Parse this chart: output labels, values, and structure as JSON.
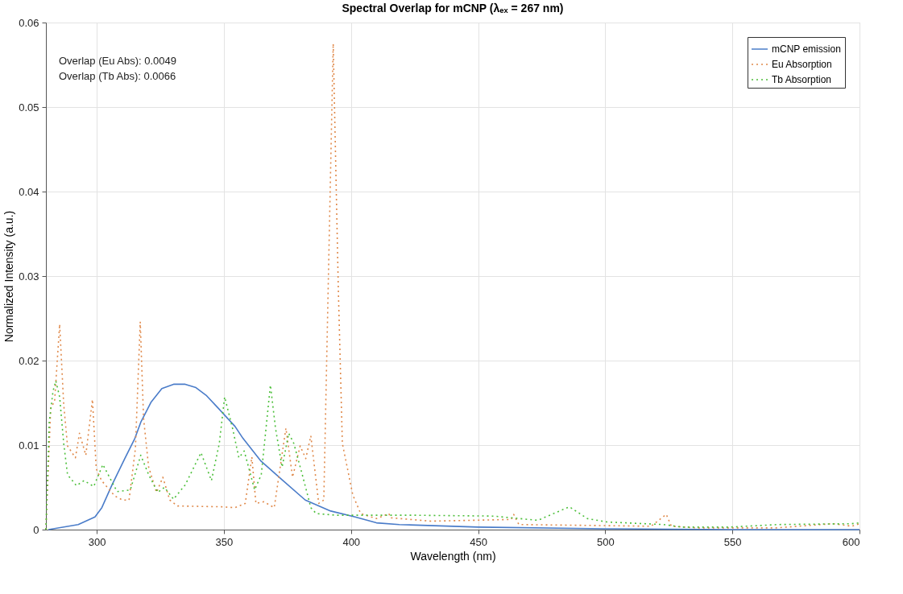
{
  "chart_data": {
    "type": "line",
    "title": "Spectral Overlap for mCNP (λₑₓ = 267 nm)",
    "xlabel": "Wavelength (nm)",
    "ylabel": "Normalized Intensity (a.u.)",
    "annotations": [
      "Overlap (Eu Abs): 0.0049",
      "Overlap (Tb Abs): 0.0066"
    ],
    "xlim": [
      280,
      600
    ],
    "ylim": [
      0,
      0.06
    ],
    "xticks": [
      300,
      350,
      400,
      450,
      500,
      550,
      600
    ],
    "yticks": [
      0,
      0.01,
      0.02,
      0.03,
      0.04,
      0.05,
      0.06
    ],
    "grid": true,
    "legend": "top right",
    "marker": "none",
    "series": [
      {
        "name": "mCNP emission",
        "color": "#4a7cc9",
        "line_style": "solid",
        "x": [
          281,
          292.7,
          299.3,
          302,
          306,
          311,
          315,
          317.3,
          321.4,
          325.6,
          330.2,
          334.8,
          339,
          343,
          348,
          354.4,
          357.5,
          364.6,
          372.9,
          382,
          392,
          401.6,
          410,
          419,
          450,
          500,
          550,
          600
        ],
        "values": [
          0.0,
          0.0006,
          0.0015,
          0.0026,
          0.0053,
          0.0084,
          0.0108,
          0.0127,
          0.0151,
          0.0167,
          0.0172,
          0.0172,
          0.0168,
          0.0159,
          0.0143,
          0.0122,
          0.0108,
          0.0081,
          0.0059,
          0.0035,
          0.0022,
          0.0015,
          0.0008,
          0.0006,
          0.0003,
          0.0001,
          0.0,
          0.0
        ]
      },
      {
        "name": "Eu Absorption",
        "color": "#e0894a",
        "line_style": "dotted",
        "x": [
          280,
          281.9,
          283.4,
          285.4,
          287,
          288.5,
          291.6,
          293.2,
          295.7,
          298.3,
          299.8,
          301.9,
          307,
          310.1,
          312.7,
          315.2,
          317.1,
          318.4,
          320.4,
          323.5,
          326,
          328.7,
          331.8,
          349,
          354.4,
          358.4,
          361,
          362.6,
          365.7,
          369.8,
          374.4,
          377,
          380,
          382.2,
          384.2,
          387.3,
          389.3,
          393,
          395,
          396.6,
          400.7,
          403.8,
          410,
          414.9,
          415.5,
          431.5,
          463,
          464,
          466,
          493,
          518,
          524,
          526,
          536,
          567,
          589.6,
          597,
          600
        ],
        "values": [
          0.0,
          0.0145,
          0.0151,
          0.0243,
          0.0148,
          0.0099,
          0.0085,
          0.0114,
          0.0088,
          0.0154,
          0.0072,
          0.0058,
          0.004,
          0.0035,
          0.0035,
          0.0096,
          0.0246,
          0.0132,
          0.0074,
          0.0044,
          0.0062,
          0.0035,
          0.0028,
          0.0027,
          0.0026,
          0.0031,
          0.0086,
          0.0031,
          0.0033,
          0.0026,
          0.012,
          0.0062,
          0.0099,
          0.0084,
          0.0111,
          0.0031,
          0.0035,
          0.0575,
          0.0286,
          0.0102,
          0.0041,
          0.0019,
          0.0013,
          0.0019,
          0.0014,
          0.001,
          0.0012,
          0.0018,
          0.0006,
          0.0005,
          0.0004,
          0.0018,
          0.0004,
          0.0002,
          0.0002,
          0.0007,
          0.0004,
          0.0007
        ]
      },
      {
        "name": "Tb Absorption",
        "color": "#4cbf3a",
        "line_style": "dotted",
        "x": [
          280,
          281.3,
          282.8,
          283.9,
          285.4,
          287,
          288.5,
          292,
          295,
          298.8,
          302.4,
          305,
          308,
          313.2,
          317.3,
          320.4,
          324,
          326.6,
          330.2,
          334.8,
          341,
          345.1,
          348.2,
          350.3,
          353.4,
          355.9,
          358,
          362.1,
          364.7,
          368.3,
          370.3,
          372.9,
          375.5,
          377.5,
          381.1,
          384.2,
          386.3,
          394.5,
          410,
          425,
          456,
          473.5,
          485.9,
          493,
          500.7,
          522.9,
          530,
          549,
          568,
          597,
          600
        ],
        "values": [
          0.0,
          0.0127,
          0.0164,
          0.0176,
          0.0157,
          0.0102,
          0.0065,
          0.0052,
          0.0058,
          0.0051,
          0.0077,
          0.0062,
          0.0045,
          0.0047,
          0.0088,
          0.0065,
          0.0044,
          0.005,
          0.0036,
          0.0053,
          0.0091,
          0.0058,
          0.0102,
          0.0157,
          0.012,
          0.0085,
          0.0093,
          0.0047,
          0.0065,
          0.0171,
          0.012,
          0.0074,
          0.0114,
          0.0102,
          0.0062,
          0.0026,
          0.0019,
          0.0017,
          0.0017,
          0.0017,
          0.0016,
          0.0011,
          0.0027,
          0.0013,
          0.0009,
          0.0006,
          0.0003,
          0.0003,
          0.0006,
          0.0007,
          0.0008
        ]
      }
    ]
  }
}
